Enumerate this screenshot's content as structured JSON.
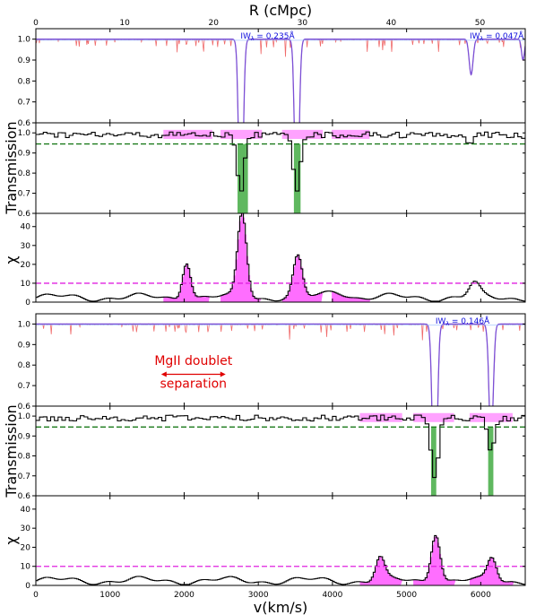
{
  "figure": {
    "top_axis_label": "R (cMpc)",
    "bottom_axis_label": "v(km/s)",
    "left_labels": [
      "Transmission",
      "Transmission"
    ],
    "chi_label": "χ",
    "colors": {
      "model": "#7b4fd6",
      "spectrum": "#f06a6a",
      "binned": "#000000",
      "threshold_trans": "#1a7a1a",
      "threshold_chi": "#e020e0",
      "fill_chi": "#ff55ff",
      "fill_absorb": "#5fb85f",
      "annot_text": "#1010dd",
      "doublet_text": "#e00000"
    }
  },
  "chart_data": [
    {
      "panel": "sightline-1-transmission",
      "type": "line",
      "xlim": [
        0,
        6600
      ],
      "ylim": [
        0.6,
        1.05
      ],
      "xticks": [
        0,
        1000,
        2000,
        3000,
        4000,
        5000,
        6000
      ],
      "yticks": [
        0.6,
        0.7,
        0.8,
        0.9,
        1.0
      ],
      "ytick_labels": [
        "0.6",
        "0.7",
        "0.8",
        "0.9",
        "1.0"
      ],
      "top_xticks": [
        0,
        10,
        20,
        30,
        40,
        50
      ],
      "top_xtick_positions": [
        0,
        1198,
        2396,
        3594,
        4792,
        5990
      ],
      "absorbers": [
        {
          "v": 2766,
          "depth": 0.99,
          "width": 28
        },
        {
          "v": 3520,
          "depth": 0.91,
          "width": 28
        },
        {
          "v": 5870,
          "depth": 0.17,
          "width": 26
        },
        {
          "v": 6570,
          "depth": 0.1,
          "width": 20
        }
      ],
      "annotations": [
        {
          "text": "W",
          "sub": "λ",
          "value": " = 0.235Å",
          "v": 2760
        },
        {
          "text": "W",
          "sub": "λ",
          "value": " = 0.047Å",
          "v": 5850
        }
      ]
    },
    {
      "panel": "sightline-1-binned",
      "type": "line",
      "xlim": [
        0,
        6600
      ],
      "ylim": [
        0.6,
        1.05
      ],
      "yticks": [
        0.6,
        0.7,
        0.8,
        0.9,
        1.0
      ],
      "ytick_labels": [
        "0.6",
        "0.7",
        "0.8",
        "0.9",
        "1.0"
      ],
      "threshold": 0.945,
      "absorption_regions": [
        [
          2720,
          2860
        ],
        [
          3480,
          3570
        ]
      ],
      "highlight_ranges": [
        [
          1720,
          2380
        ],
        [
          2490,
          3050
        ],
        [
          3320,
          3870
        ],
        [
          3990,
          4500
        ]
      ]
    },
    {
      "panel": "sightline-1-chi",
      "type": "area",
      "xlim": [
        0,
        6600
      ],
      "ylim": [
        0,
        47
      ],
      "yticks": [
        0,
        10,
        20,
        30,
        40
      ],
      "ytick_labels": [
        "0",
        "10",
        "20",
        "30",
        "40"
      ],
      "threshold": 10,
      "peaks": [
        {
          "v": 2020,
          "height": 20,
          "width": 55
        },
        {
          "v": 2770,
          "height": 45,
          "width": 60
        },
        {
          "v": 3520,
          "height": 21,
          "width": 60
        },
        {
          "v": 4040,
          "height": 3.5,
          "width": 130
        },
        {
          "v": 5900,
          "height": 7,
          "width": 70
        }
      ],
      "fill_ranges": [
        [
          1720,
          2330
        ],
        [
          2490,
          3020
        ],
        [
          3320,
          3850
        ],
        [
          3990,
          4500
        ]
      ]
    },
    {
      "panel": "sightline-2-transmission",
      "type": "line",
      "xlim": [
        0,
        6600
      ],
      "ylim": [
        0.6,
        1.05
      ],
      "yticks": [
        0.6,
        0.7,
        0.8,
        0.9,
        1.0
      ],
      "ytick_labels": [
        "0.6",
        "0.7",
        "0.8",
        "0.9",
        "1.0"
      ],
      "absorbers": [
        {
          "v": 5380,
          "depth": 0.99,
          "width": 30
        },
        {
          "v": 6140,
          "depth": 0.58,
          "width": 28
        }
      ],
      "annotations": [
        {
          "text": "W",
          "sub": "λ",
          "value": " = 0.146Å",
          "v": 5390
        }
      ],
      "doublet": {
        "line1": "MgII doublet",
        "line2": "separation",
        "from": 1690,
        "to": 2560
      }
    },
    {
      "panel": "sightline-2-binned",
      "type": "line",
      "xlim": [
        0,
        6600
      ],
      "ylim": [
        0.6,
        1.05
      ],
      "yticks": [
        0.6,
        0.7,
        0.8,
        0.9,
        1.0
      ],
      "ytick_labels": [
        "0.6",
        "0.7",
        "0.8",
        "0.9",
        "1.0"
      ],
      "threshold": 0.945,
      "absorption_regions": [
        [
          5330,
          5400
        ],
        [
          6100,
          6170
        ]
      ],
      "highlight_ranges": [
        [
          4370,
          4940
        ],
        [
          5090,
          5640
        ],
        [
          5850,
          6430
        ]
      ]
    },
    {
      "panel": "sightline-2-chi",
      "type": "area",
      "xlim": [
        0,
        6600
      ],
      "ylim": [
        0,
        47
      ],
      "xticks": [
        0,
        1000,
        2000,
        3000,
        4000,
        5000,
        6000
      ],
      "yticks": [
        0,
        10,
        20,
        30,
        40
      ],
      "ytick_labels": [
        "0",
        "10",
        "20",
        "30",
        "40"
      ],
      "threshold": 10,
      "peaks": [
        {
          "v": 4630,
          "height": 12,
          "width": 60
        },
        {
          "v": 5380,
          "height": 26,
          "width": 60
        },
        {
          "v": 6140,
          "height": 12,
          "width": 60
        }
      ],
      "fill_ranges": [
        [
          4370,
          4920
        ],
        [
          5090,
          5640
        ],
        [
          5850,
          6430
        ]
      ]
    }
  ]
}
